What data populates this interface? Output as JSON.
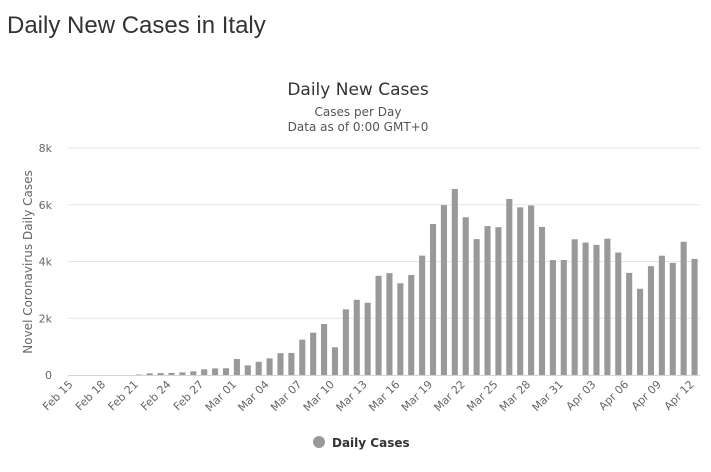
{
  "page": {
    "title": "Daily New Cases in Italy"
  },
  "chart_data": {
    "type": "bar",
    "title": "Daily New Cases",
    "subtitle": "Cases per Day",
    "subtitle2": "Data as of 0:00 GMT+0",
    "xlabel": "",
    "ylabel": "Novel Coronavirus Daily Cases",
    "ylim": [
      0,
      8000
    ],
    "y_ticks": [
      0,
      2000,
      4000,
      6000,
      8000
    ],
    "y_tick_labels": [
      "0",
      "2k",
      "4k",
      "6k",
      "8k"
    ],
    "grid": true,
    "legend_position": "bottom-center",
    "bar_color": "#999999",
    "categories": [
      "Feb 15",
      "Feb 16",
      "Feb 17",
      "Feb 18",
      "Feb 19",
      "Feb 20",
      "Feb 21",
      "Feb 22",
      "Feb 23",
      "Feb 24",
      "Feb 25",
      "Feb 26",
      "Feb 27",
      "Feb 28",
      "Feb 29",
      "Mar 01",
      "Mar 02",
      "Mar 03",
      "Mar 04",
      "Mar 05",
      "Mar 06",
      "Mar 07",
      "Mar 08",
      "Mar 09",
      "Mar 10",
      "Mar 11",
      "Mar 12",
      "Mar 13",
      "Mar 14",
      "Mar 15",
      "Mar 16",
      "Mar 17",
      "Mar 18",
      "Mar 19",
      "Mar 20",
      "Mar 21",
      "Mar 22",
      "Mar 23",
      "Mar 24",
      "Mar 25",
      "Mar 26",
      "Mar 27",
      "Mar 28",
      "Mar 29",
      "Mar 30",
      "Mar 31",
      "Apr 01",
      "Apr 02",
      "Apr 03",
      "Apr 04",
      "Apr 05",
      "Apr 06",
      "Apr 07",
      "Apr 08",
      "Apr 09",
      "Apr 10",
      "Apr 11",
      "Apr 12"
    ],
    "x_tick_labels": [
      "Feb 15",
      "Feb 18",
      "Feb 21",
      "Feb 24",
      "Feb 27",
      "Mar 01",
      "Mar 04",
      "Mar 07",
      "Mar 10",
      "Mar 13",
      "Mar 16",
      "Mar 19",
      "Mar 22",
      "Mar 25",
      "Mar 28",
      "Mar 31",
      "Apr 03",
      "Apr 06",
      "Apr 09",
      "Apr 12"
    ],
    "series": [
      {
        "name": "Daily Cases",
        "values": [
          0,
          0,
          0,
          0,
          0,
          0,
          16,
          60,
          68,
          73,
          93,
          128,
          200,
          233,
          238,
          566,
          340,
          466,
          587,
          769,
          778,
          1247,
          1492,
          1797,
          977,
          2313,
          2651,
          2547,
          3497,
          3590,
          3233,
          3526,
          4207,
          5322,
          5986,
          6557,
          5560,
          4789,
          5249,
          5210,
          6203,
          5909,
          5974,
          5217,
          4050,
          4053,
          4782,
          4668,
          4585,
          4805,
          4316,
          3599,
          3039,
          3836,
          4204,
          3951,
          4694,
          4092
        ]
      }
    ],
    "legend": [
      {
        "label": "Daily Cases",
        "color": "#999999"
      }
    ]
  }
}
